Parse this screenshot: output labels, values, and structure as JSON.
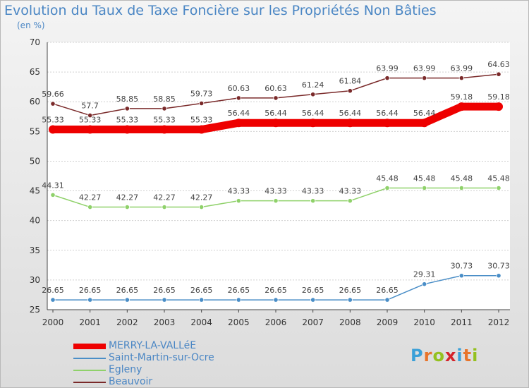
{
  "title": "Evolution du Taux de Taxe Foncière sur les Propriétés Non Bâties",
  "subtitle": "(en %)",
  "logo": "Proxiti",
  "chart_data": {
    "type": "line",
    "x": [
      2000,
      2001,
      2002,
      2003,
      2004,
      2005,
      2006,
      2007,
      2008,
      2009,
      2010,
      2011,
      2012
    ],
    "ylim": [
      25,
      70
    ],
    "yticks": [
      25,
      30,
      35,
      40,
      45,
      50,
      55,
      60,
      65,
      70
    ],
    "grid": "horizontal",
    "legend_position": "bottom-left",
    "series": [
      {
        "name": "MERRY-LA-VALLéE",
        "color": "#ee0000",
        "values": [
          55.33,
          55.33,
          55.33,
          55.33,
          55.33,
          56.44,
          56.44,
          56.44,
          56.44,
          56.44,
          56.44,
          59.18,
          59.18
        ]
      },
      {
        "name": "Saint-Martin-sur-Ocre",
        "color": "#4a8ec7",
        "values": [
          26.65,
          26.65,
          26.65,
          26.65,
          26.65,
          26.65,
          26.65,
          26.65,
          26.65,
          26.65,
          29.31,
          30.73,
          30.73
        ]
      },
      {
        "name": "Egleny",
        "color": "#8fd16a",
        "values": [
          44.31,
          42.27,
          42.27,
          42.27,
          42.27,
          43.33,
          43.33,
          43.33,
          43.33,
          45.48,
          45.48,
          45.48,
          45.48
        ]
      },
      {
        "name": "Beauvoir",
        "color": "#7a2a2a",
        "values": [
          59.66,
          57.7,
          58.85,
          58.85,
          59.73,
          60.63,
          60.63,
          61.24,
          61.84,
          63.99,
          63.99,
          63.99,
          64.63
        ]
      }
    ]
  }
}
